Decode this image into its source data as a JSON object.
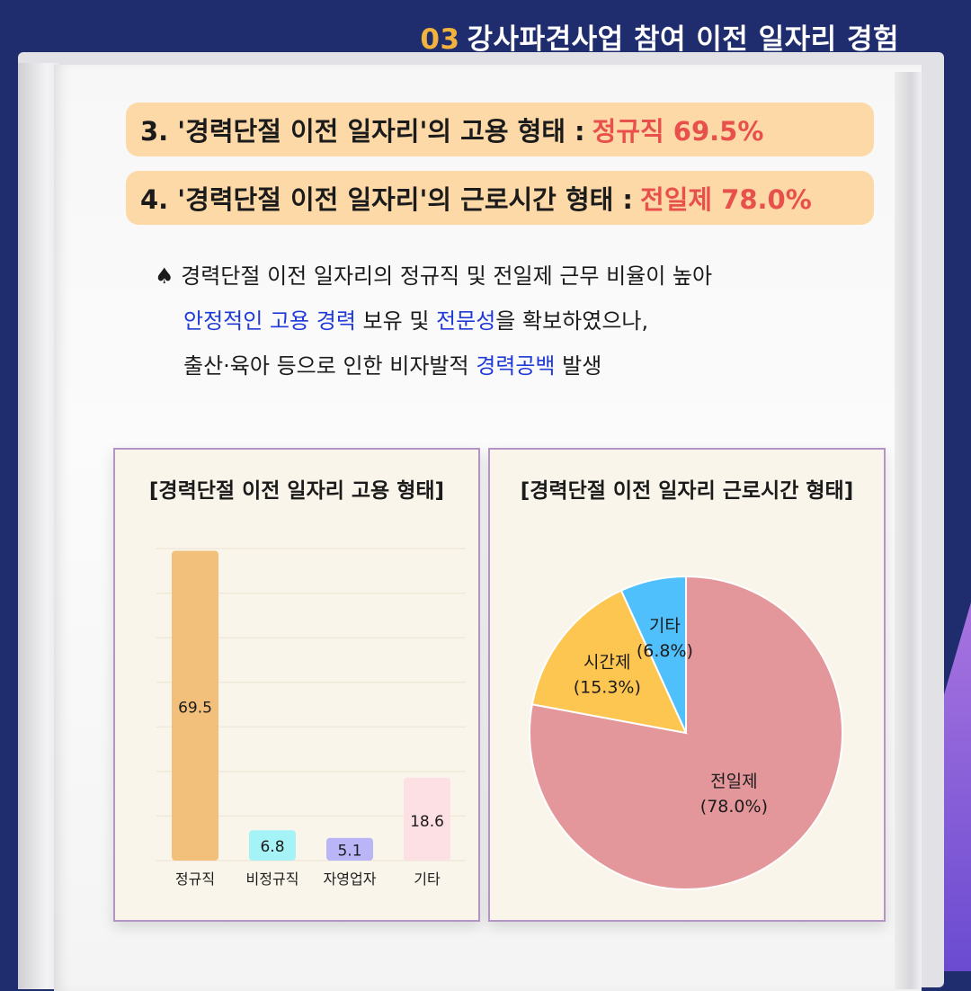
{
  "header": {
    "number": "03",
    "title": "강사파견사업 참여 이전 일자리 경험"
  },
  "pills": [
    {
      "label": "3. '경력단절 이전 일자리'의 고용 형태 :",
      "highlight": "정규직 69.5%"
    },
    {
      "label": "4. '경력단절 이전 일자리'의 근로시간 형태 :",
      "highlight": "전일제 78.0%"
    }
  ],
  "description": {
    "line1": "♠ 경력단절 이전 일자리의 정규직 및 전일제 근무 비율이 높아",
    "line2_a": "안정적인 고용 경력",
    "line2_b": " 보유 및 ",
    "line2_c": "전문성",
    "line2_d": "을 확보하였으나,",
    "line3_a": "출산·육아 등으로 인한 비자발적 ",
    "line3_b": "경력공백",
    "line3_c": " 발생"
  },
  "colors": {
    "navy": "#1f2d6e",
    "pill_bg": "#fdd9a8",
    "highlight_red": "#e8514b",
    "highlight_blue": "#1f3ad6",
    "panel_border": "#b496c6",
    "panel_bg": "#faf5ea"
  },
  "chart_data": [
    {
      "type": "bar",
      "title": "[경력단절 이전 일자리 고용 형태]",
      "categories": [
        "정규직",
        "비정규직",
        "자영업자",
        "기타"
      ],
      "values": [
        69.5,
        6.8,
        5.1,
        18.6
      ],
      "value_labels": [
        "69.5",
        "6.8",
        "5.1",
        "18.6"
      ],
      "colors": [
        "#f2c07a",
        "#a6f3f7",
        "#b9b5f7",
        "#fde0e3"
      ],
      "ylim": [
        0,
        70
      ],
      "grid": true,
      "xlabel": "",
      "ylabel": ""
    },
    {
      "type": "pie",
      "title": "[경력단절 이전 일자리 근로시간 형태]",
      "slices": [
        {
          "label": "전일제",
          "value": 78.0,
          "pct_label": "(78.0%)",
          "color": "#e3979b"
        },
        {
          "label": "시간제",
          "value": 15.3,
          "pct_label": "(15.3%)",
          "color": "#fdc650"
        },
        {
          "label": "기타",
          "value": 6.8,
          "pct_label": "(6.8%)",
          "color": "#4fc0fb"
        }
      ]
    }
  ]
}
